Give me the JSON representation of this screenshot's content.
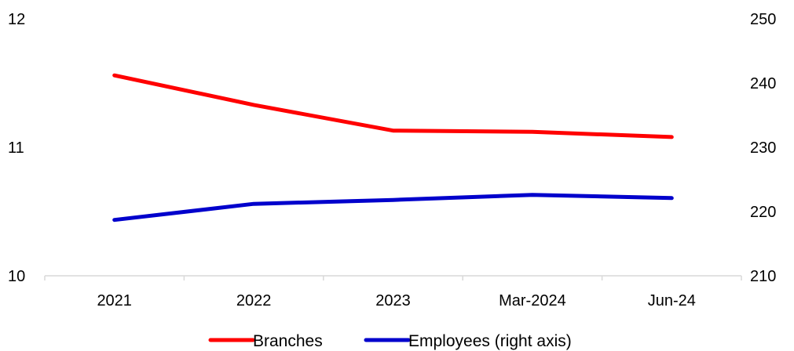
{
  "chart_data": {
    "type": "line",
    "categories": [
      "2021",
      "2022",
      "2023",
      "Mar-2024",
      "Jun-24"
    ],
    "series": [
      {
        "name": "Branches",
        "axis": "left",
        "color": "#ff0000",
        "values": [
          11.56,
          11.33,
          11.13,
          11.12,
          11.08
        ]
      },
      {
        "name": "Employees (right axis)",
        "axis": "right",
        "color": "#0000cc",
        "values": [
          218.7,
          221.2,
          221.8,
          222.6,
          222.1
        ]
      }
    ],
    "y_left": {
      "min": 10,
      "max": 12,
      "ticks": [
        "10",
        "11",
        "12"
      ]
    },
    "y_right": {
      "min": 210,
      "max": 250,
      "ticks": [
        "210",
        "220",
        "230",
        "240",
        "250"
      ]
    },
    "grid": false,
    "legend_position": "bottom",
    "title": "",
    "xlabel": "",
    "ylabel": ""
  }
}
